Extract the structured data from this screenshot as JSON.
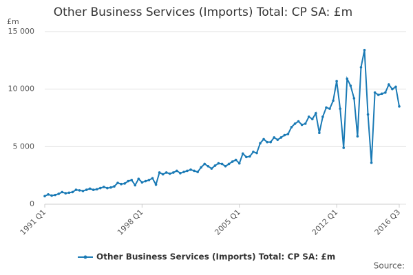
{
  "chart_data": {
    "type": "line",
    "title": "Other Business Services (Imports) Total: CP SA: £m",
    "y_unit": "£m",
    "source": "Source:",
    "categories": [
      "1991 Q1",
      null,
      null,
      null,
      null,
      null,
      null,
      null,
      null,
      null,
      null,
      null,
      null,
      null,
      null,
      null,
      null,
      null,
      null,
      null,
      null,
      null,
      null,
      null,
      null,
      null,
      null,
      null,
      "1998 Q1",
      null,
      null,
      null,
      null,
      null,
      null,
      null,
      null,
      null,
      null,
      null,
      null,
      null,
      null,
      null,
      null,
      null,
      null,
      null,
      null,
      null,
      null,
      null,
      null,
      null,
      null,
      null,
      "2005 Q1",
      null,
      null,
      null,
      null,
      null,
      null,
      null,
      null,
      null,
      null,
      null,
      null,
      null,
      null,
      null,
      null,
      null,
      null,
      null,
      null,
      null,
      null,
      null,
      null,
      null,
      null,
      null,
      "2012 Q1",
      null,
      null,
      null,
      null,
      null,
      null,
      null,
      null,
      null,
      null,
      null,
      null,
      null,
      null,
      null,
      null,
      null,
      "2016 Q3"
    ],
    "series": [
      {
        "name": "Other Business Services (Imports) Total: CP SA: £m",
        "color": "#1a7ab5",
        "values": [
          700,
          850,
          750,
          800,
          900,
          1050,
          950,
          1000,
          1050,
          1250,
          1200,
          1150,
          1250,
          1350,
          1250,
          1300,
          1400,
          1500,
          1400,
          1450,
          1550,
          1850,
          1750,
          1800,
          2000,
          2100,
          1650,
          2200,
          1900,
          2000,
          2100,
          2250,
          1700,
          2750,
          2600,
          2750,
          2650,
          2750,
          2900,
          2700,
          2800,
          2900,
          3000,
          2900,
          2800,
          3200,
          3500,
          3300,
          3100,
          3350,
          3550,
          3500,
          3300,
          3500,
          3700,
          3850,
          3550,
          4400,
          4100,
          4150,
          4550,
          4450,
          5300,
          5650,
          5400,
          5400,
          5800,
          5600,
          5800,
          6000,
          6100,
          6700,
          7000,
          7200,
          6900,
          7000,
          7600,
          7400,
          7900,
          6200,
          7600,
          8400,
          8300,
          9000,
          10700,
          8300,
          4900,
          10900,
          10300,
          9200,
          5900,
          11900,
          13400,
          7800,
          3600,
          9700,
          9500,
          9600,
          9700,
          10400,
          10000,
          10200,
          8500
        ]
      }
    ],
    "ylim": [
      0,
      15000
    ],
    "yticks": [
      0,
      {
        "value": 5000,
        "label": "5 000"
      },
      {
        "value": 10000,
        "label": "10 000"
      },
      {
        "value": 15000,
        "label": "15 000"
      }
    ],
    "grid": true
  }
}
